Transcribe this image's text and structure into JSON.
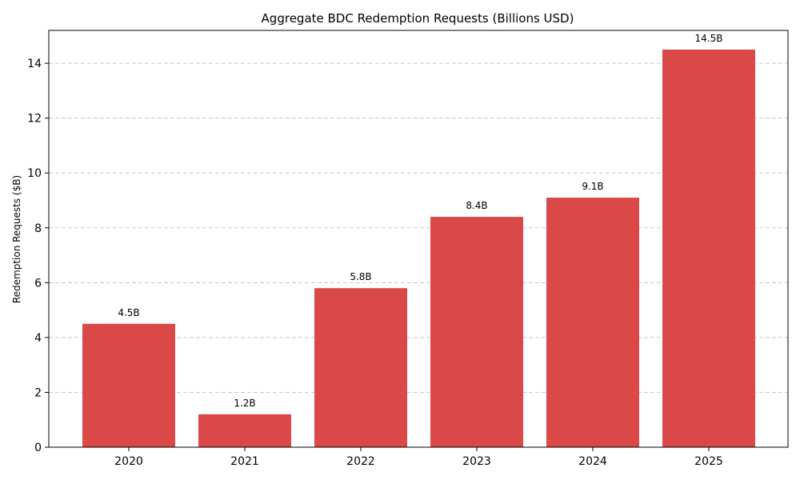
{
  "chart_data": {
    "type": "bar",
    "title": "Aggregate BDC Redemption Requests (Billions USD)",
    "xlabel": "",
    "ylabel": "Redemption Requests ($B)",
    "categories": [
      "2020",
      "2021",
      "2022",
      "2023",
      "2024",
      "2025"
    ],
    "values": [
      4.5,
      1.2,
      5.8,
      8.4,
      9.1,
      14.5
    ],
    "data_labels": [
      "4.5B",
      "1.2B",
      "5.8B",
      "8.4B",
      "9.1B",
      "14.5B"
    ],
    "ylim": [
      0,
      15.2
    ],
    "yticks": [
      0,
      2,
      4,
      6,
      8,
      10,
      12,
      14
    ],
    "grid": true,
    "bar_color": "#db4848"
  }
}
